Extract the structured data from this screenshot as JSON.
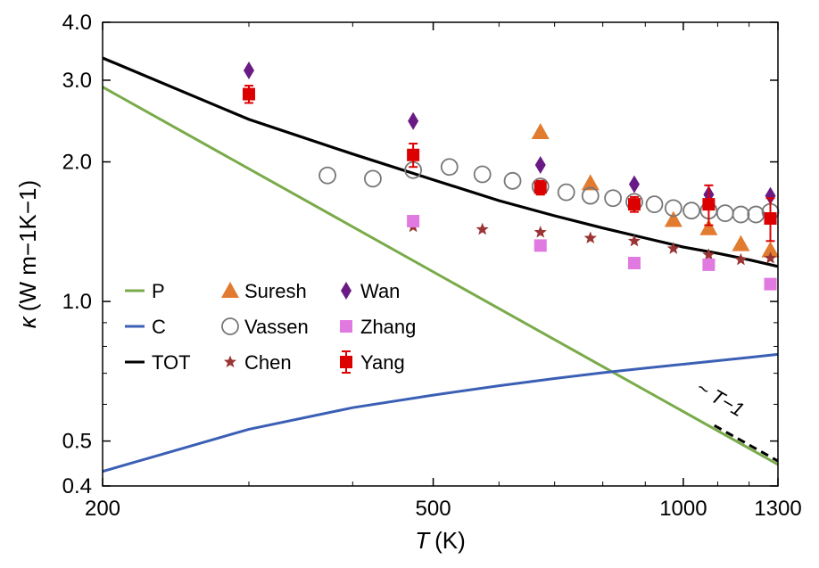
{
  "chart_data": {
    "type": "line",
    "xlabel": "T (K)",
    "xlabel_var": "T",
    "xlabel_unit": "(K)",
    "ylabel": "κ (W m−1K−1)",
    "ylabel_var": "κ",
    "ylabel_unit": "(W m−1K−1)",
    "x_scale": "log",
    "y_scale": "log",
    "xlim": [
      200,
      1300
    ],
    "ylim": [
      0.4,
      4.0
    ],
    "x_ticks": [
      {
        "value": 200,
        "label": "200"
      },
      {
        "value": 500,
        "label": "500"
      },
      {
        "value": 1000,
        "label": "1000"
      },
      {
        "value": 1300,
        "label": "1300"
      }
    ],
    "x_minor_ticks": [
      300,
      400,
      600,
      700,
      800,
      900,
      1100,
      1200
    ],
    "y_ticks": [
      {
        "value": 0.4,
        "label": "0.4"
      },
      {
        "value": 0.5,
        "label": "0.5"
      },
      {
        "value": 1.0,
        "label": "1.0"
      },
      {
        "value": 2.0,
        "label": "2.0"
      },
      {
        "value": 3.0,
        "label": "3.0"
      },
      {
        "value": 4.0,
        "label": "4.0"
      }
    ],
    "y_minor_ticks": [
      0.6,
      0.7,
      0.8,
      0.9
    ],
    "grid": false,
    "legend_position": "center-left",
    "annotation": {
      "text": "~ T−1",
      "x_range": [
        1090,
        1300
      ],
      "y_start": 0.54,
      "slope": -1
    },
    "series": [
      {
        "name": "P",
        "type": "line",
        "color": "#7aab4a",
        "x": [
          200,
          1300
        ],
        "y": [
          2.9,
          0.445
        ]
      },
      {
        "name": "C",
        "type": "line",
        "color": "#3b5fb5",
        "x": [
          200,
          300,
          400,
          500,
          600,
          700,
          800,
          900,
          1000,
          1100,
          1200,
          1300
        ],
        "y": [
          0.43,
          0.53,
          0.59,
          0.628,
          0.658,
          0.682,
          0.702,
          0.718,
          0.732,
          0.745,
          0.757,
          0.769
        ]
      },
      {
        "name": "TOT",
        "type": "line",
        "color": "#000000",
        "x": [
          200,
          300,
          400,
          500,
          600,
          700,
          800,
          900,
          1000,
          1100,
          1200,
          1300
        ],
        "y": [
          3.35,
          2.47,
          2.08,
          1.83,
          1.65,
          1.53,
          1.44,
          1.37,
          1.31,
          1.27,
          1.23,
          1.19
        ]
      },
      {
        "name": "Suresh",
        "type": "scatter",
        "marker": "triangle",
        "color": "#e07b30",
        "x": [
          673,
          773,
          973,
          1073,
          1173,
          1273
        ],
        "y": [
          2.32,
          1.8,
          1.5,
          1.44,
          1.33,
          1.29
        ]
      },
      {
        "name": "Vassen",
        "type": "scatter",
        "marker": "open-circle",
        "color": "#777777",
        "x": [
          373,
          423,
          473,
          523,
          573,
          623,
          673,
          723,
          773,
          823,
          873,
          923,
          973,
          1023,
          1073,
          1123,
          1173,
          1223,
          1273
        ],
        "y": [
          1.87,
          1.84,
          1.92,
          1.95,
          1.88,
          1.82,
          1.77,
          1.72,
          1.69,
          1.67,
          1.64,
          1.62,
          1.59,
          1.57,
          1.57,
          1.55,
          1.54,
          1.54,
          1.56
        ]
      },
      {
        "name": "Chen",
        "type": "scatter",
        "marker": "star",
        "color": "#9b3535",
        "x": [
          473,
          573,
          673,
          773,
          873,
          973,
          1073,
          1173,
          1273
        ],
        "y": [
          1.45,
          1.43,
          1.41,
          1.37,
          1.35,
          1.3,
          1.26,
          1.23,
          1.24
        ]
      },
      {
        "name": "Wan",
        "type": "scatter",
        "marker": "diamond",
        "color": "#6a1a85",
        "x": [
          300,
          473,
          673,
          873,
          1073,
          1273
        ],
        "y": [
          3.15,
          2.45,
          1.97,
          1.79,
          1.7,
          1.69
        ]
      },
      {
        "name": "Zhang",
        "type": "scatter",
        "marker": "square",
        "color": "#e07ae0",
        "x": [
          473,
          673,
          873,
          1073,
          1273
        ],
        "y": [
          1.49,
          1.32,
          1.21,
          1.2,
          1.09
        ]
      },
      {
        "name": "Yang",
        "type": "scatter",
        "marker": "square-errorbar",
        "color": "#dd0000",
        "x": [
          300,
          473,
          673,
          873,
          1073,
          1273
        ],
        "y": [
          2.8,
          2.07,
          1.76,
          1.62,
          1.62,
          1.51
        ],
        "err": [
          0.12,
          0.12,
          0.06,
          0.06,
          0.16,
          0.16
        ]
      }
    ]
  }
}
